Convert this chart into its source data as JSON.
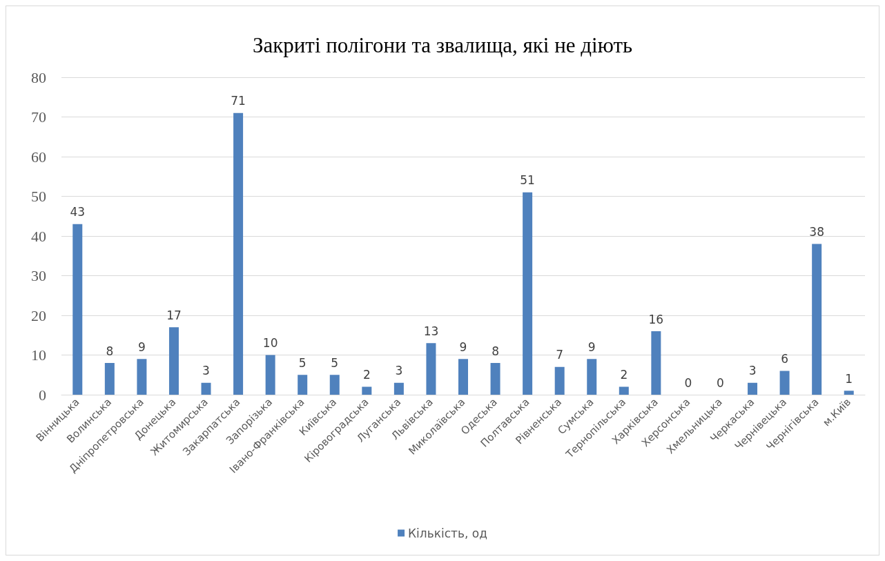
{
  "chart_data": {
    "type": "bar",
    "title": "Закриті полігони та звалища, які не діють",
    "categories": [
      "Вінницька",
      "Волинська",
      "Дніпропетровська",
      "Донецька",
      "Житомирська",
      "Закарпатська",
      "Запорізька",
      "Івано-Франківська",
      "Київська",
      "Кіровоградська",
      "Луганська",
      "Львівська",
      "Миколаївська",
      "Одеська",
      "Полтавська",
      "Рівненська",
      "Сумська",
      "Тернопільська",
      "Харківська",
      "Херсонська",
      "Хмельницька",
      "Черкаська",
      "Чернівецька",
      "Чернігівська",
      "м.Київ"
    ],
    "series": [
      {
        "name": "Кількість, од",
        "color": "#4f81bd",
        "values": [
          43,
          8,
          9,
          17,
          3,
          71,
          10,
          5,
          5,
          2,
          3,
          13,
          9,
          8,
          51,
          7,
          9,
          2,
          16,
          0,
          0,
          3,
          6,
          38,
          1
        ]
      }
    ],
    "ylim": [
      0,
      80
    ],
    "yticks": [
      0,
      10,
      20,
      30,
      40,
      50,
      60,
      70,
      80
    ],
    "grid": "y",
    "legend": "bottom",
    "data_labels": true
  }
}
